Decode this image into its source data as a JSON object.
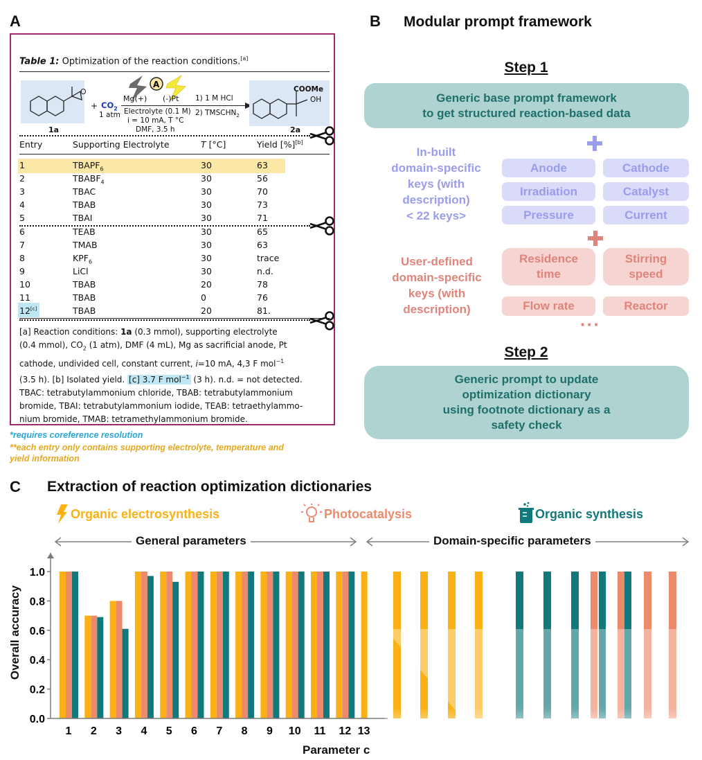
{
  "panel_a": {
    "letter": "A",
    "table_title_prefix": "Table 1:",
    "table_title": " Optimization of the reaction conditions.",
    "table_title_sup": "[a]",
    "scheme": {
      "reactant_label": "1a",
      "co2": "CO",
      "co2_sub": "2",
      "co2_cond": "1 atm",
      "plus": "+",
      "anode": "Mg(+)",
      "cathode": "(-)Pt",
      "cond1": "Electrolyte (0.1 M)",
      "cond2": "i = 10 mA, T °C",
      "cond3": "DMF, 3.5 h",
      "step1": "1) 1 M HCl",
      "step2": "2) TMSCHN",
      "step2_sub": "2",
      "product_label": "2a",
      "coome": "COOMe",
      "oh": "OH",
      "a_circle": "A"
    },
    "headers": {
      "entry": "Entry",
      "electrolyte": "Supporting Electrolyte",
      "temp_sym": "T",
      "temp_unit": " [°C]",
      "yield": "Yield [%]",
      "yield_sup": "[b]"
    },
    "rows": [
      {
        "entry": "1",
        "el": "TBAPF",
        "el_sub": "6",
        "t": "30",
        "y": "63"
      },
      {
        "entry": "2",
        "el": "TBABF",
        "el_sub": "4",
        "t": "30",
        "y": "56"
      },
      {
        "entry": "3",
        "el": "TBAC",
        "el_sub": "",
        "t": "30",
        "y": "70"
      },
      {
        "entry": "4",
        "el": "TBAB",
        "el_sub": "",
        "t": "30",
        "y": "73"
      },
      {
        "entry": "5",
        "el": "TBAI",
        "el_sub": "",
        "t": "30",
        "y": "71"
      },
      {
        "entry": "6",
        "el": "TEAB",
        "el_sub": "",
        "t": "30",
        "y": "65"
      },
      {
        "entry": "7",
        "el": "TMAB",
        "el_sub": "",
        "t": "30",
        "y": "63"
      },
      {
        "entry": "8",
        "el": "KPF",
        "el_sub": "6",
        "t": "30",
        "y": "trace"
      },
      {
        "entry": "9",
        "el": "LiCl",
        "el_sub": "",
        "t": "30",
        "y": "n.d."
      },
      {
        "entry": "10",
        "el": "TBAB",
        "el_sub": "",
        "t": "20",
        "y": "78"
      },
      {
        "entry": "11",
        "el": "TBAB",
        "el_sub": "",
        "t": "0",
        "y": "76"
      },
      {
        "entry": "12",
        "el": "TBAB",
        "el_sub": "",
        "t": "20",
        "y": "81.",
        "entry_sup": "[c]"
      }
    ],
    "footnote": {
      "l1a": "[a] Reaction conditions: ",
      "l1b": "1a",
      "l1c": " (0.3 mmol), supporting electrolyte",
      "l2": "(0.4 mmol), CO",
      "l2sub": "2",
      "l2b": " (1 atm), DMF (4 mL), Mg as sacrificial anode, Pt",
      "l3a": "cathode, undivided cell, constant current, ",
      "l3i": "i",
      "l3b": "=10 mA, 4,3 F mol",
      "l3sup": "−1",
      "l4a": "(3.5 h). [b] Isolated yield. ",
      "l4c": "[c] 3.7 F mol",
      "l4csup": "−1",
      "l4b": " (3 h). n.d. = not detected.",
      "l5": "TBAC: tetrabutylammonium chloride, TBAB: tetrabutylammonium",
      "l6": "bromide, TBAI: tetrabutylammonium iodide, TEAB: tetraethylammo-",
      "l7": "nium bromide, TMAB: tetramethylammonium bromide."
    },
    "note1": "*requires coreference resolution",
    "note2a": "**each entry only contains supporting electrolyte, temperature and",
    "note2b": "yield information",
    "colors": {
      "border": "#a3286a",
      "highlight_yellow": "#fbe7a6",
      "highlight_blue": "#bfe6f3",
      "note1": "#2aa8d8",
      "note2": "#e7a81e"
    }
  },
  "panel_b": {
    "letter": "B",
    "title": "Modular prompt framework",
    "step1": "Step 1",
    "base_l1": "Generic base prompt framework",
    "base_l2": "to get structured reaction-based data",
    "inbuilt": [
      "In-built",
      "domain-specific",
      "keys (with",
      "description)",
      "< 22 keys>"
    ],
    "inbuilt_keys": [
      "Anode",
      "Cathode",
      "Irradiation",
      "Catalyst",
      "Pressure",
      "Current"
    ],
    "user": [
      "User-defined",
      "domain-specific",
      "keys (with",
      "description)"
    ],
    "user_keys": [
      "Residence time",
      "Stirring speed",
      "Flow rate",
      "Reactor"
    ],
    "user_keys_lines": {
      "k1a": "Residence",
      "k1b": "time",
      "k2a": "Stirring",
      "k2b": "speed"
    },
    "ellipsis": "···",
    "step2": "Step 2",
    "step2_l1": "Generic prompt to update",
    "step2_l2": "optimization dictionary",
    "step2_l3": "using footnote dictionary as a",
    "step2_l4": "safety check",
    "colors": {
      "teal_box": "#afd3d0",
      "teal_text": "#1f6f6b",
      "blue_box": "#dadbf8",
      "blue_text": "#9a9cec",
      "pink_box": "#f6d4d2",
      "pink_text": "#e0847b"
    }
  },
  "panel_c": {
    "letter": "C",
    "title": "Extraction of reaction optimization dictionaries",
    "legend": [
      "Organic electrosynthesis",
      "Photocatalysis",
      "Organic synthesis"
    ],
    "general_label": "General parameters",
    "domain_label": "Domain-specific parameters",
    "colors": {
      "electro": "#fbb116",
      "photo": "#ee8a6c",
      "organic": "#11787b"
    }
  },
  "chart_data": {
    "type": "bar",
    "title": "",
    "xlabel": "Parameter c",
    "ylabel": "Overall accuracy",
    "ylim": [
      0,
      1.1
    ],
    "yticks": [
      "0.0",
      "0.2",
      "0.4",
      "0.6",
      "0.8",
      "1.0"
    ],
    "categories": [
      "1",
      "2",
      "3",
      "4",
      "5",
      "6",
      "7",
      "8",
      "9",
      "10",
      "11",
      "12",
      "13"
    ],
    "series": [
      {
        "name": "Organic electrosynthesis",
        "values": [
          1.0,
          0.7,
          0.8,
          1.0,
          1.0,
          1.0,
          1.0,
          1.0,
          1.0,
          1.0,
          1.0,
          1.0,
          1.0
        ]
      },
      {
        "name": "Photocatalysis",
        "values": [
          1.0,
          0.7,
          0.8,
          1.0,
          1.0,
          1.0,
          1.0,
          1.0,
          1.0,
          1.0,
          1.0,
          1.0,
          null
        ]
      },
      {
        "name": "Organic synthesis",
        "values": [
          1.0,
          0.69,
          0.61,
          0.97,
          0.93,
          1.0,
          1.0,
          1.0,
          1.0,
          1.0,
          1.0,
          1.0,
          null
        ]
      }
    ],
    "domain_specific_bars": [
      {
        "series": "Organic electrosynthesis",
        "value": 1.0
      },
      {
        "series": "Organic electrosynthesis",
        "value": 1.0
      },
      {
        "series": "Organic electrosynthesis",
        "value": 1.0
      },
      {
        "series": "Organic electrosynthesis",
        "value": 1.0
      },
      {
        "series": "Organic synthesis",
        "value": 1.0
      },
      {
        "series": "Organic synthesis",
        "value": 1.0
      },
      {
        "series": "Organic synthesis",
        "value": 1.0
      },
      {
        "series": "Photocatalysis",
        "value": 1.0
      },
      {
        "series": "Organic synthesis",
        "value": 1.0
      },
      {
        "series": "Photocatalysis",
        "value": 1.0
      },
      {
        "series": "Organic synthesis",
        "value": 1.0
      },
      {
        "series": "Photocatalysis",
        "value": 1.0
      },
      {
        "series": "Photocatalysis",
        "value": 1.0
      }
    ]
  }
}
